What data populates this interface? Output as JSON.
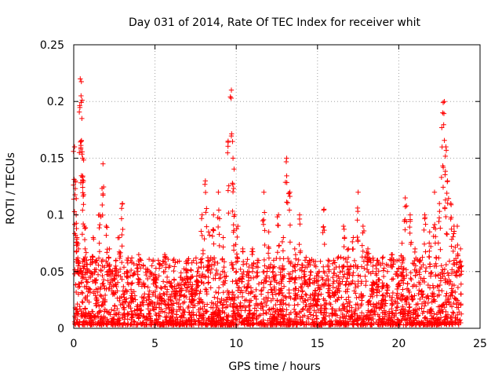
{
  "chart_data": {
    "type": "scatter",
    "title": "Day 031 of 2014, Rate Of TEC Index for receiver whit",
    "xlabel": "GPS time / hours",
    "ylabel": "ROTI / TECUs",
    "xlim": [
      0,
      25
    ],
    "ylim": [
      0,
      0.25
    ],
    "xticks": [
      0,
      5,
      10,
      15,
      20,
      25
    ],
    "xtick_labels": [
      "0",
      "5",
      "10",
      "15",
      "20",
      "25"
    ],
    "yticks": [
      0,
      0.05,
      0.1,
      0.15,
      0.2,
      0.25
    ],
    "ytick_labels": [
      "0",
      "0.05",
      "0.1",
      "0.15",
      "0.2",
      "0.25"
    ],
    "grid": true,
    "marker": "plus",
    "color": "#ff0000",
    "series": [
      {
        "name": "",
        "x": [
          0.05,
          0.1,
          0.15,
          0.2,
          0.25,
          0.3,
          0.4,
          0.45,
          0.5,
          0.55,
          0.6,
          0.65,
          0.7,
          0.8,
          1.0,
          1.2,
          1.4,
          1.6,
          1.8,
          2.0,
          2.2,
          2.4,
          2.6,
          2.8,
          3.0,
          3.3,
          3.6,
          4.0,
          4.3,
          4.6,
          5.0,
          5.3,
          5.6,
          6.0,
          6.3,
          6.6,
          7.0,
          7.3,
          7.6,
          7.9,
          8.1,
          8.3,
          8.6,
          8.9,
          9.2,
          9.5,
          9.7,
          9.8,
          9.9,
          10.1,
          10.4,
          10.7,
          11.0,
          11.3,
          11.7,
          12.0,
          12.3,
          12.6,
          12.9,
          13.1,
          13.3,
          13.6,
          13.9,
          14.2,
          14.5,
          14.8,
          15.1,
          15.4,
          15.7,
          16.0,
          16.3,
          16.6,
          16.9,
          17.2,
          17.5,
          17.8,
          18.1,
          18.4,
          18.7,
          19.0,
          19.3,
          19.6,
          19.9,
          20.2,
          20.4,
          20.7,
          21.0,
          21.3,
          21.6,
          21.9,
          22.2,
          22.5,
          22.7,
          22.8,
          22.9,
          23.0,
          23.2,
          23.4,
          23.6,
          23.8
        ],
        "y": [
          0.16,
          0.13,
          0.1,
          0.08,
          0.06,
          0.07,
          0.22,
          0.205,
          0.185,
          0.15,
          0.13,
          0.09,
          0.07,
          0.06,
          0.05,
          0.08,
          0.06,
          0.1,
          0.145,
          0.09,
          0.07,
          0.05,
          0.06,
          0.08,
          0.11,
          0.05,
          0.04,
          0.065,
          0.04,
          0.03,
          0.045,
          0.03,
          0.065,
          0.04,
          0.035,
          0.045,
          0.06,
          0.03,
          0.05,
          0.1,
          0.13,
          0.085,
          0.1,
          0.12,
          0.08,
          0.165,
          0.21,
          0.15,
          0.1,
          0.09,
          0.07,
          0.05,
          0.07,
          0.06,
          0.12,
          0.085,
          0.06,
          0.1,
          0.08,
          0.15,
          0.12,
          0.07,
          0.1,
          0.05,
          0.06,
          0.04,
          0.05,
          0.105,
          0.05,
          0.06,
          0.04,
          0.09,
          0.07,
          0.08,
          0.12,
          0.09,
          0.07,
          0.05,
          0.06,
          0.04,
          0.05,
          0.065,
          0.05,
          0.075,
          0.115,
          0.1,
          0.07,
          0.06,
          0.1,
          0.085,
          0.12,
          0.11,
          0.19,
          0.2,
          0.16,
          0.13,
          0.11,
          0.09,
          0.09,
          0.07
        ]
      }
    ]
  }
}
